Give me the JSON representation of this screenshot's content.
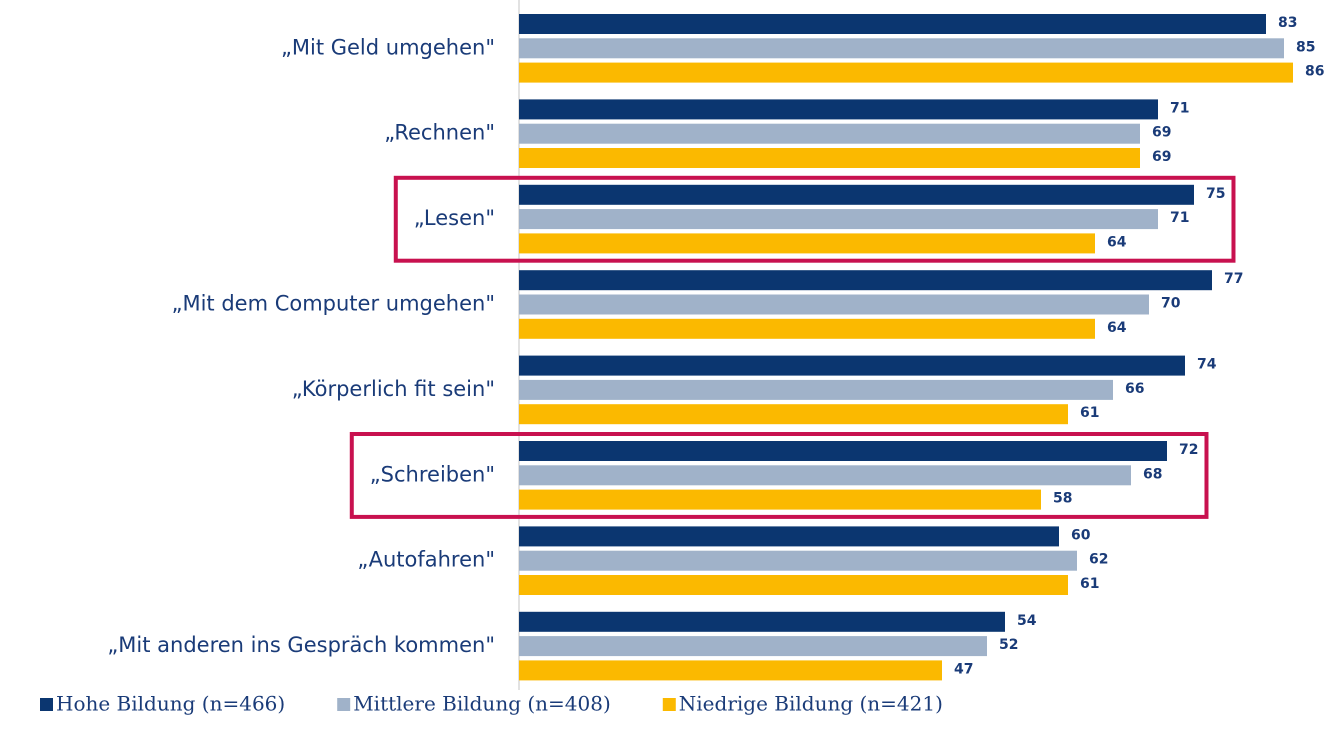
{
  "chart_data": {
    "type": "hbar",
    "categories": [
      "„Mit Geld umgehen\"",
      "„Rechnen\"",
      "„Lesen\"",
      "„Mit dem Computer umgehen\"",
      "„Körperlich fit sein\"",
      "„Schreiben\"",
      "„Autofahren\"",
      "„Mit anderen ins Gespräch kommen\""
    ],
    "series": [
      {
        "name": "Hohe Bildung (n=466)",
        "color": "#0b3670",
        "values": [
          83,
          71,
          75,
          77,
          74,
          72,
          60,
          54
        ]
      },
      {
        "name": "Mittlere Bildung (n=408)",
        "color": "#a0b2c9",
        "values": [
          85,
          69,
          71,
          70,
          66,
          68,
          62,
          52
        ]
      },
      {
        "name": "Niedrige Bildung (n=421)",
        "color": "#fbb900",
        "values": [
          86,
          69,
          64,
          64,
          61,
          58,
          61,
          47
        ]
      }
    ],
    "xlim": [
      0,
      100
    ],
    "highlight": [
      2,
      5
    ],
    "highlight_color": "#c8114f",
    "legend": "bottom"
  }
}
